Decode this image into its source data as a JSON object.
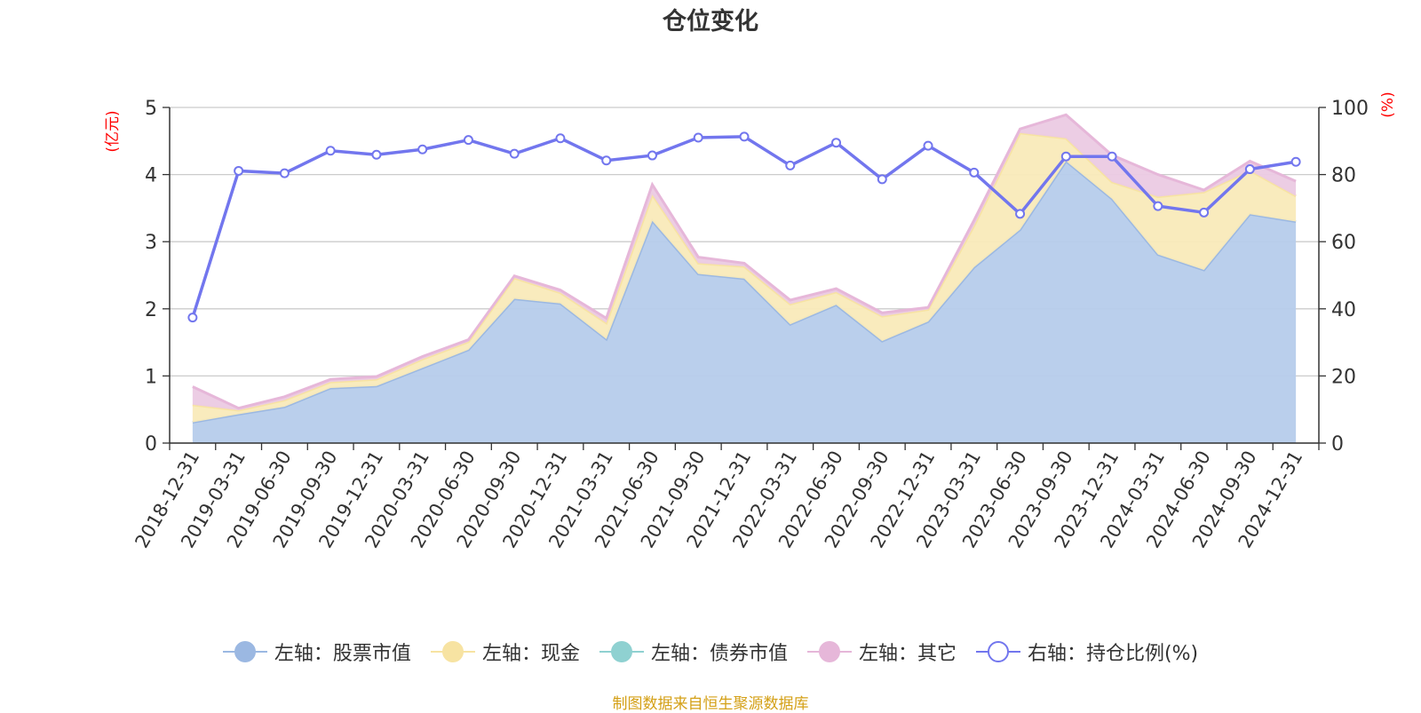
{
  "source_note": "制图数据来自恒生聚源数据库",
  "chart_data": {
    "type": "area",
    "title": "仓位变化",
    "y_left_unit": "(亿元)",
    "y_right_unit": "(%)",
    "ylim_left": [
      0,
      5
    ],
    "yticks_left": [
      "0",
      "1",
      "2",
      "3",
      "4",
      "5"
    ],
    "ylim_right": [
      0,
      100
    ],
    "yticks_right": [
      "0",
      "20",
      "40",
      "60",
      "80",
      "100"
    ],
    "grid": true,
    "legend_position": "bottom",
    "categories": [
      "2018-12-31",
      "2019-03-31",
      "2019-06-30",
      "2019-09-30",
      "2019-12-31",
      "2020-03-31",
      "2020-06-30",
      "2020-09-30",
      "2020-12-31",
      "2021-03-31",
      "2021-06-30",
      "2021-09-30",
      "2021-12-31",
      "2022-03-31",
      "2022-06-30",
      "2022-09-30",
      "2022-12-31",
      "2023-03-31",
      "2023-06-30",
      "2023-09-30",
      "2023-12-31",
      "2024-03-31",
      "2024-06-30",
      "2024-09-30",
      "2024-12-31"
    ],
    "series": [
      {
        "name": "左轴：股票市值",
        "axis": "left",
        "stacked": true,
        "color": "#9bb8e2",
        "fill": "#b6cceb",
        "values": [
          0.31,
          0.43,
          0.54,
          0.82,
          0.85,
          1.12,
          1.39,
          2.15,
          2.08,
          1.55,
          3.31,
          2.52,
          2.45,
          1.77,
          2.06,
          1.52,
          1.81,
          2.62,
          3.18,
          4.2,
          3.64,
          2.81,
          2.58,
          3.41,
          3.3
        ]
      },
      {
        "name": "左轴：现金",
        "axis": "left",
        "stacked": true,
        "color": "#f7e3a2",
        "fill": "#f9eab9",
        "values": [
          0.26,
          0.06,
          0.1,
          0.09,
          0.1,
          0.13,
          0.12,
          0.31,
          0.16,
          0.24,
          0.39,
          0.16,
          0.18,
          0.3,
          0.19,
          0.37,
          0.18,
          0.62,
          1.44,
          0.34,
          0.25,
          0.86,
          1.16,
          0.65,
          0.38
        ]
      },
      {
        "name": "左轴：债券市值",
        "axis": "left",
        "stacked": true,
        "color": "#8fd1d1",
        "fill": "#a9dddd",
        "values": [
          0,
          0,
          0,
          0,
          0,
          0,
          0,
          0,
          0,
          0,
          0,
          0,
          0,
          0,
          0,
          0,
          0,
          0,
          0,
          0,
          0,
          0,
          0,
          0,
          0
        ]
      },
      {
        "name": "左轴：其它",
        "axis": "left",
        "stacked": true,
        "color": "#e6b7d9",
        "fill": "#ebcae3",
        "values": [
          0.27,
          0.03,
          0.05,
          0.04,
          0.04,
          0.04,
          0.03,
          0.03,
          0.04,
          0.07,
          0.15,
          0.09,
          0.05,
          0.06,
          0.05,
          0.05,
          0.03,
          0.08,
          0.06,
          0.35,
          0.4,
          0.33,
          0.03,
          0.14,
          0.22
        ]
      },
      {
        "name": "右轴：持仓比例(%)",
        "axis": "right",
        "stacked": false,
        "color": "#7276ee",
        "values": [
          37.4,
          81.1,
          80.4,
          87.1,
          85.9,
          87.5,
          90.3,
          86.2,
          90.8,
          84.2,
          85.7,
          91.0,
          91.3,
          82.7,
          89.5,
          78.6,
          88.6,
          80.6,
          68.3,
          85.4,
          85.4,
          70.6,
          68.7,
          81.6,
          83.8
        ]
      }
    ]
  }
}
